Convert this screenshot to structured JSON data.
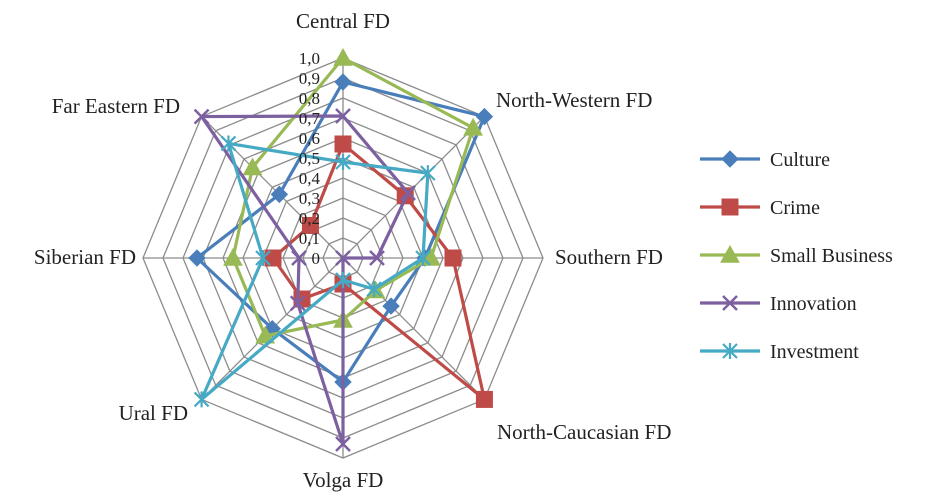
{
  "chart_data": {
    "type": "radar",
    "categories": [
      "Central FD",
      "North-Western FD",
      "Southern FD",
      "North-Caucasian FD",
      "Volga FD",
      "Ural FD",
      "Siberian FD",
      "Far Eastern FD"
    ],
    "r_ticks": [
      "0",
      "0,1",
      "0,2",
      "0,3",
      "0,4",
      "0,5",
      "0,6",
      "0,7",
      "0,8",
      "0,9",
      "1,0"
    ],
    "rlim": [
      0,
      1
    ],
    "grid": true,
    "legend_position": "right",
    "series": [
      {
        "name": "Culture",
        "color": "#4a7ebb",
        "marker": "diamond",
        "values": [
          0.88,
          1.0,
          0.41,
          0.34,
          0.62,
          0.5,
          0.73,
          0.45
        ]
      },
      {
        "name": "Crime",
        "color": "#be4b48",
        "marker": "square",
        "values": [
          0.57,
          0.44,
          0.55,
          1.0,
          0.13,
          0.29,
          0.35,
          0.23
        ]
      },
      {
        "name": "Small Business",
        "color": "#98b954",
        "marker": "triangle",
        "values": [
          1.0,
          0.92,
          0.44,
          0.23,
          0.31,
          0.55,
          0.55,
          0.64
        ]
      },
      {
        "name": "Innovation",
        "color": "#7d60a0",
        "marker": "x",
        "values": [
          0.71,
          0.46,
          0.17,
          0.0,
          0.93,
          0.32,
          0.22,
          1.0
        ]
      },
      {
        "name": "Investment",
        "color": "#46aac5",
        "marker": "star",
        "values": [
          0.48,
          0.6,
          0.4,
          0.22,
          0.11,
          1.0,
          0.4,
          0.81
        ]
      }
    ]
  }
}
